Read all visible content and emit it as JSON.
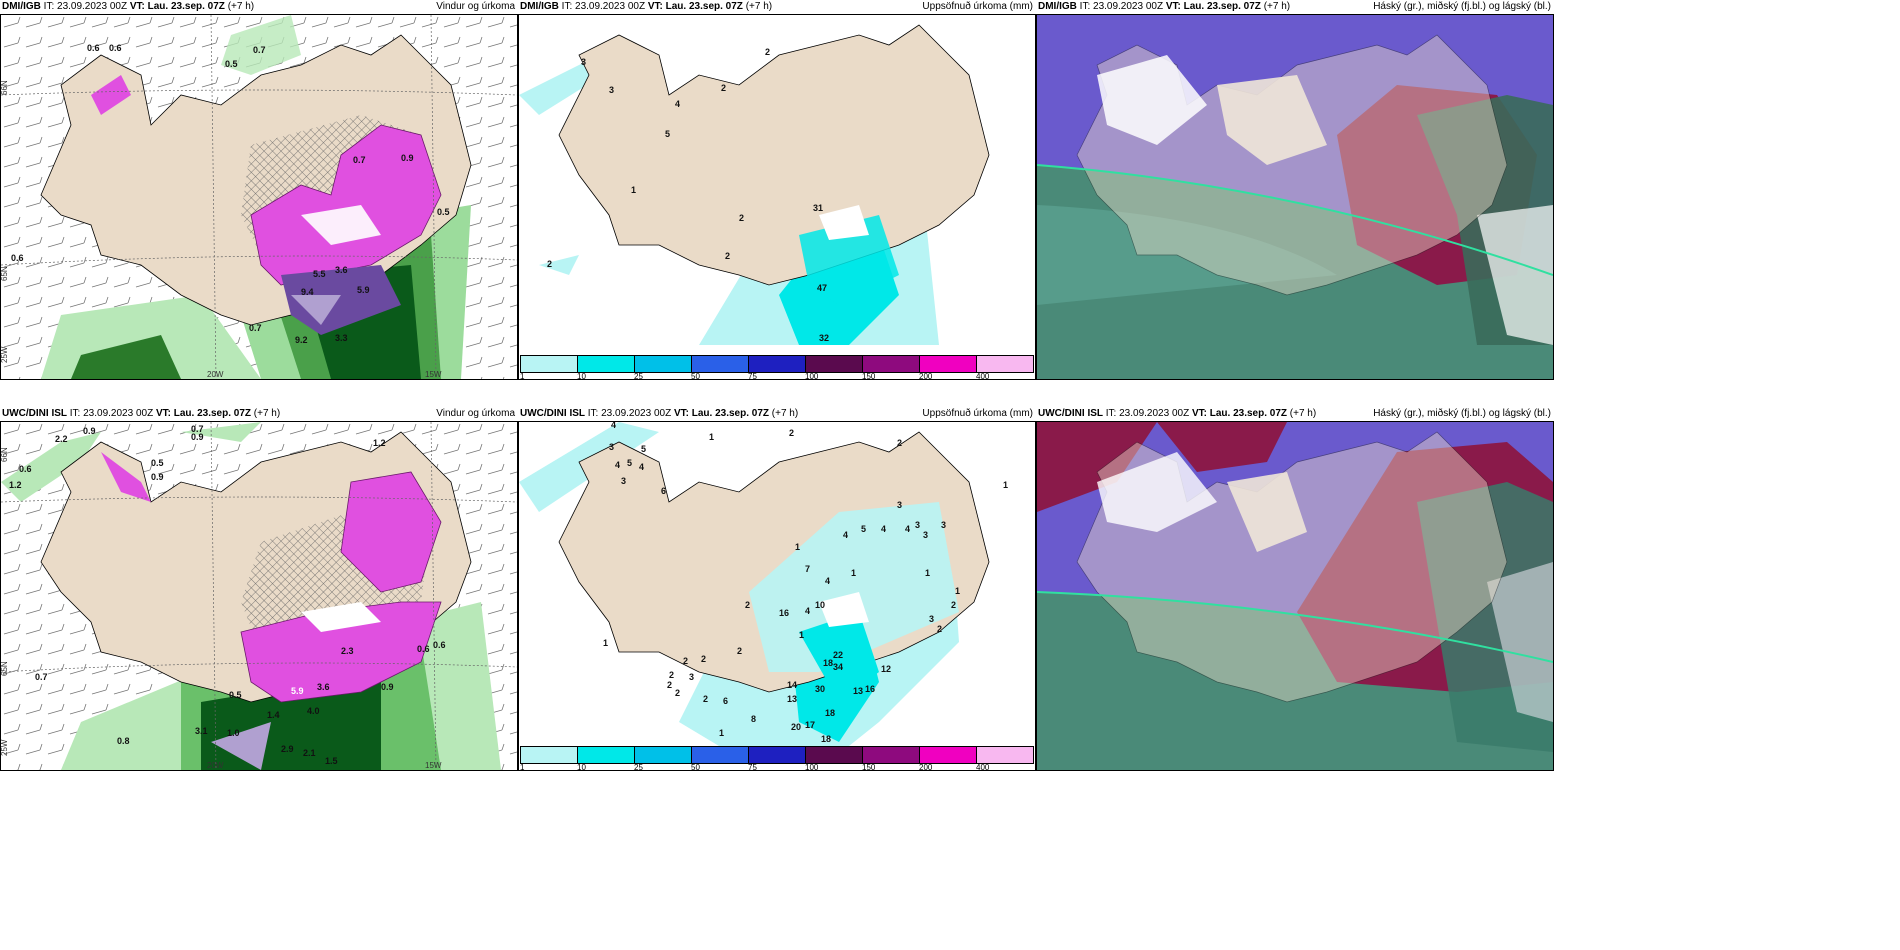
{
  "panels": [
    {
      "model": "DMI/IGB",
      "it": "IT: 23.09.2023 00Z",
      "vt_label": "VT:",
      "vt": "Lau. 23.sep. 07Z",
      "lead": "(+7 h)",
      "title": "Vindur og úrkoma",
      "labels": [
        "0.6",
        "0.6",
        "0.7",
        "0.5",
        "0.7",
        "0.9",
        "0.6",
        "9.4",
        "5.9",
        "9.2",
        "3.3",
        "0.7",
        "5.5",
        "3.6",
        "0.5"
      ],
      "ticks": [
        "66N",
        "65N",
        "25W",
        "20W",
        "15W"
      ]
    },
    {
      "model": "DMI/IGB",
      "it": "IT: 23.09.2023 00Z",
      "vt_label": "VT:",
      "vt": "Lau. 23.sep. 07Z",
      "lead": "(+7 h)",
      "title": "Uppsöfnuð úrkoma (mm)",
      "labels": [
        "3",
        "2",
        "2",
        "4",
        "3",
        "5",
        "1",
        "2",
        "2",
        "2",
        "47",
        "32",
        "31"
      ]
    },
    {
      "model": "DMI/IGB",
      "it": "IT: 23.09.2023 00Z",
      "vt_label": "VT:",
      "vt": "Lau. 23.sep. 07Z",
      "lead": "(+7 h)",
      "title": "Háský (gr.), miðský (fj.bl.) og lágský (bl.)"
    },
    {
      "model": "UWC/DINI ISL",
      "it": "IT: 23.09.2023 00Z",
      "vt_label": "VT:",
      "vt": "Lau. 23.sep. 07Z",
      "lead": "(+7 h)",
      "title": "Vindur og úrkoma",
      "labels": [
        "2.2",
        "0.9",
        "0.7",
        "0.9",
        "1.2",
        "0.6",
        "1.2",
        "0.5",
        "0.9",
        "0.7",
        "0.8",
        "3.1",
        "1.0",
        "2.9",
        "2.1",
        "1.5",
        "4.0",
        "3.6",
        "2.3",
        "0.6",
        "0.9",
        "5.9",
        "1.4",
        "0.6",
        "0.5"
      ],
      "ticks": [
        "66N",
        "65N",
        "25W",
        "20W",
        "15W"
      ]
    },
    {
      "model": "UWC/DINI ISL",
      "it": "IT: 23.09.2023 00Z",
      "vt_label": "VT:",
      "vt": "Lau. 23.sep. 07Z",
      "lead": "(+7 h)",
      "title": "Uppsöfnuð úrkoma (mm)",
      "labels": [
        "4",
        "1",
        "2",
        "2",
        "3",
        "3",
        "1",
        "4",
        "5",
        "4",
        "4",
        "3",
        "3",
        "7",
        "4",
        "1",
        "16",
        "10",
        "2",
        "4",
        "1",
        "2",
        "2",
        "2",
        "2",
        "3",
        "2",
        "2",
        "2",
        "6",
        "8",
        "1",
        "14",
        "13",
        "30",
        "34",
        "22",
        "18",
        "12",
        "16",
        "13",
        "20",
        "17",
        "18",
        "18",
        "1",
        "2",
        "3",
        "2",
        "1",
        "6",
        "4",
        "3",
        "5",
        "4",
        "5",
        "3",
        "1",
        "1"
      ]
    },
    {
      "model": "UWC/DINI ISL",
      "it": "IT: 23.09.2023 00Z",
      "vt_label": "VT:",
      "vt": "Lau. 23.sep. 07Z",
      "lead": "(+7 h)",
      "title": "Háský (gr.), miðský (fj.bl.) og lágský (bl.)"
    }
  ],
  "colorbar": {
    "ticks": [
      "1",
      "10",
      "25",
      "50",
      "75",
      "100",
      "150",
      "200",
      "400"
    ],
    "colors": [
      "#b8f4f4",
      "#00e8e8",
      "#00c0e8",
      "#2a60e8",
      "#1e20c0",
      "#5a0a4e",
      "#8e0a7e",
      "#f000c0",
      "#f8b8f0"
    ]
  },
  "icons": {
    "wind_barb": "wind-barb-icon",
    "snow_hatch": "hatch-pattern"
  }
}
